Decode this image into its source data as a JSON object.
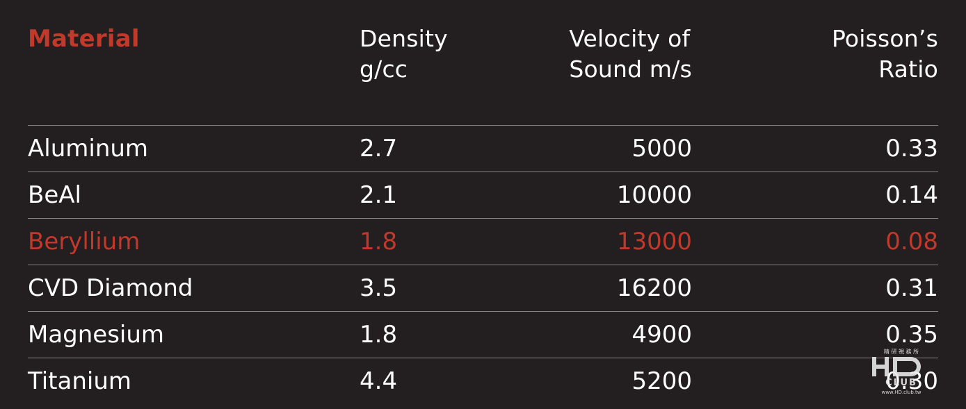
{
  "headers": {
    "material": "Material",
    "density_line1": "Density",
    "density_line2": "g/cc",
    "velocity_line1": "Velocity of",
    "velocity_line2": "Sound m/s",
    "poisson_line1": "Poisson’s",
    "poisson_line2": "Ratio"
  },
  "rows": [
    {
      "material": "Aluminum",
      "density": "2.7",
      "velocity": "5000",
      "poisson": "0.33",
      "highlight": false
    },
    {
      "material": "BeAl",
      "density": "2.1",
      "velocity": "10000",
      "poisson": "0.14",
      "highlight": false
    },
    {
      "material": "Beryllium",
      "density": "1.8",
      "velocity": "13000",
      "poisson": "0.08",
      "highlight": true
    },
    {
      "material": "CVD Diamond",
      "density": "3.5",
      "velocity": "16200",
      "poisson": "0.31",
      "highlight": false
    },
    {
      "material": "Magnesium",
      "density": "1.8",
      "velocity": "4900",
      "poisson": "0.35",
      "highlight": false
    },
    {
      "material": "Titanium",
      "density": "4.4",
      "velocity": "5200",
      "poisson": "0.30",
      "highlight": false
    }
  ],
  "colors": {
    "background": "#231f20",
    "text": "#ffffff",
    "accent": "#c0392b",
    "divider": "#8a8687"
  },
  "watermark": {
    "top_text": "精 研 視 務 所",
    "logo_text": "HD",
    "sub_text": "CLUB",
    "url_text": "www.HD.club.tw"
  }
}
